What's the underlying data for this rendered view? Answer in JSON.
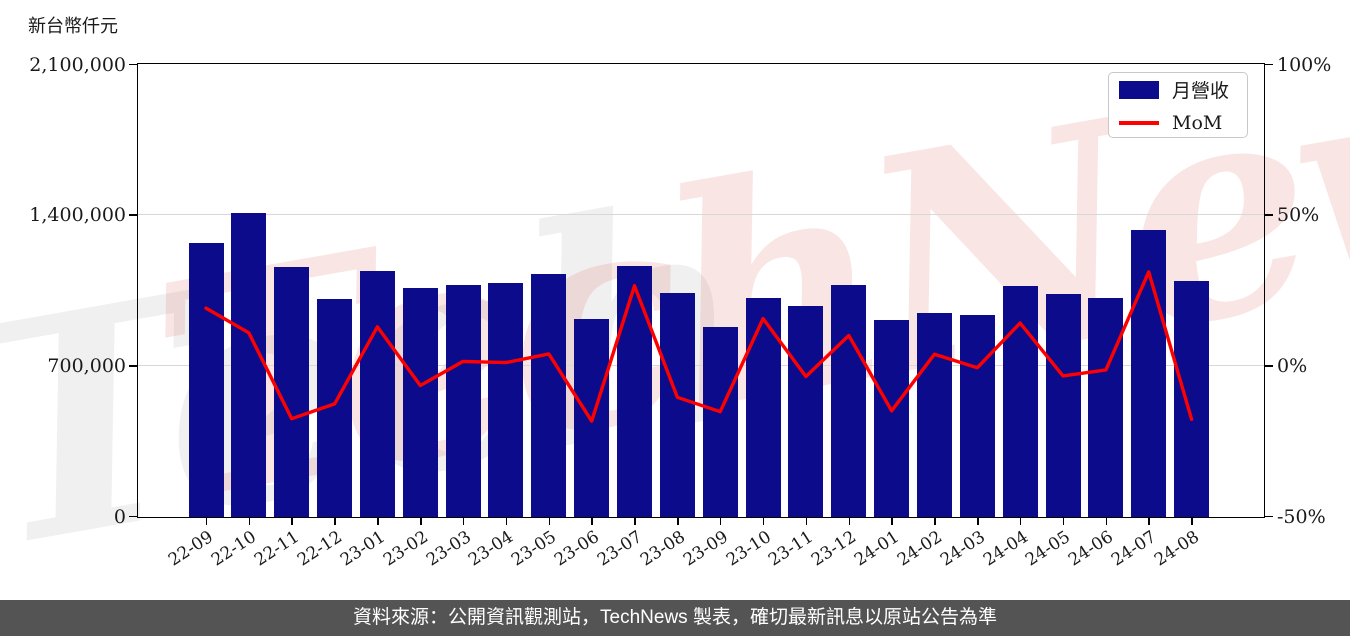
{
  "watermark": {
    "front_text": "TechNews",
    "back_text": "Tech"
  },
  "legend": {
    "bar_label": "月營收",
    "line_label": "MoM"
  },
  "footer": {
    "text": "資料來源：公開資訊觀測站，TechNews 製表，確切最新訊息以原站公告為準"
  },
  "colors": {
    "bar": "#0b0b8b",
    "line": "#ff0000",
    "grid": "#d8d8d8",
    "spine": "#000000",
    "footer_bg": "#545454",
    "footer_text": "#ffffff",
    "watermark_pink": "rgba(224,95,95,0.16)",
    "watermark_gray": "rgba(90,90,90,0.09)"
  },
  "chart_data": {
    "type": "bar",
    "title": "",
    "categories": [
      "22-09",
      "22-10",
      "22-11",
      "22-12",
      "23-01",
      "23-02",
      "23-03",
      "23-04",
      "23-05",
      "23-06",
      "23-07",
      "23-08",
      "23-09",
      "23-10",
      "23-11",
      "23-12",
      "24-01",
      "24-02",
      "24-03",
      "24-04",
      "24-05",
      "24-06",
      "24-07",
      "24-08"
    ],
    "series": [
      {
        "name": "月營收",
        "type": "bar",
        "axis": "left",
        "values": [
          1273000,
          1411000,
          1161000,
          1012000,
          1141000,
          1065000,
          1079000,
          1089000,
          1130000,
          921000,
          1165000,
          1041000,
          881000,
          1018000,
          980000,
          1077000,
          914000,
          948000,
          940000,
          1072000,
          1035000,
          1019000,
          1335000,
          1097000
        ]
      },
      {
        "name": "MoM",
        "type": "line",
        "axis": "right",
        "values": [
          19.0,
          10.8,
          -17.7,
          -12.8,
          12.8,
          -6.7,
          1.3,
          0.9,
          3.8,
          -18.5,
          26.4,
          -10.6,
          -15.4,
          15.5,
          -3.7,
          9.9,
          -15.1,
          3.7,
          -0.8,
          14.0,
          -3.5,
          -1.5,
          31.0,
          -17.9
        ]
      }
    ],
    "left_axis": {
      "title": "新台幣仟元",
      "range": [
        0,
        2100000
      ],
      "ticks_top_to_bottom": [
        "2,100,000",
        "1,400,000",
        "700,000",
        "0"
      ]
    },
    "right_axis": {
      "range": [
        -50,
        100
      ],
      "ticks_top_to_bottom": [
        "100%",
        "50%",
        "0%",
        "-50%"
      ],
      "unit": "%"
    },
    "grid": "horizontal",
    "legend_position": "top-right"
  }
}
